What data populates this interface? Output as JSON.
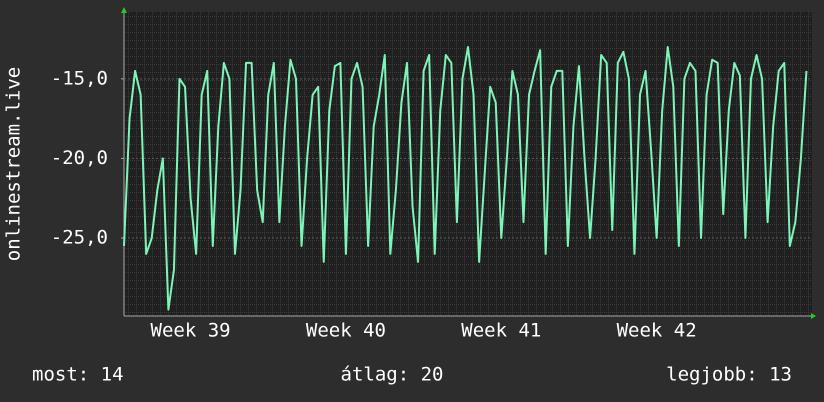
{
  "chart_data": {
    "type": "line",
    "ylabel": "onlinestream.live",
    "x": [
      0,
      0.25,
      0.5,
      0.75,
      1,
      1.25,
      1.5,
      1.75,
      2,
      2.25,
      2.5,
      2.75,
      3,
      3.25,
      3.5,
      3.75,
      4,
      4.25,
      4.5,
      4.75,
      5,
      5.25,
      5.5,
      5.75,
      6,
      6.25,
      6.5,
      6.75,
      7,
      7.25,
      7.5,
      7.75,
      8,
      8.25,
      8.5,
      8.75,
      9,
      9.25,
      9.5,
      9.75,
      10,
      10.25,
      10.5,
      10.75,
      11,
      11.25,
      11.5,
      11.75,
      12,
      12.25,
      12.5,
      12.75,
      13,
      13.25,
      13.5,
      13.75,
      14,
      14.25,
      14.5,
      14.75,
      15,
      15.25,
      15.5,
      15.75,
      16,
      16.25,
      16.5,
      16.75,
      17,
      17.25,
      17.5,
      17.75,
      18,
      18.25,
      18.5,
      18.75,
      19,
      19.25,
      19.5,
      19.75,
      20,
      20.25,
      20.5,
      20.75,
      21,
      21.25,
      21.5,
      21.75,
      22,
      22.25,
      22.5,
      22.75,
      23,
      23.25,
      23.5,
      23.75,
      24,
      24.25,
      24.5,
      24.75,
      25,
      25.25,
      25.5,
      25.75,
      26,
      26.25,
      26.5,
      26.75,
      27,
      27.25,
      27.5,
      27.75,
      28,
      28.25,
      28.5,
      28.75,
      29,
      29.25,
      29.5,
      29.75,
      30,
      30.25,
      30.5,
      30.75
    ],
    "series": [
      {
        "color": "#7df5b8",
        "values": [
          -25.5,
          -17.5,
          -14.5,
          -16,
          -26,
          -25,
          -22,
          -20,
          -29.5,
          -27,
          -15,
          -15.5,
          -22.5,
          -26,
          -16,
          -14.5,
          -25.5,
          -18,
          -14,
          -15,
          -26,
          -22,
          -14,
          -14,
          -22,
          -24,
          -16,
          -14,
          -24,
          -18,
          -13.8,
          -15,
          -25.5,
          -20,
          -16,
          -15.5,
          -26.5,
          -17,
          -14.2,
          -14,
          -26,
          -15,
          -14,
          -15.5,
          -25.5,
          -18,
          -16,
          -13.5,
          -26,
          -22,
          -16.5,
          -14,
          -23,
          -26.5,
          -14.5,
          -13.5,
          -26,
          -17,
          -13.5,
          -14,
          -24,
          -15,
          -13,
          -16,
          -26.5,
          -21,
          -15.5,
          -16.5,
          -25,
          -20,
          -14.5,
          -16,
          -24,
          -16,
          -14.5,
          -13.2,
          -26,
          -15.5,
          -14.5,
          -14.5,
          -25.5,
          -18,
          -14.2,
          -20,
          -25,
          -20,
          -13.5,
          -14,
          -24.5,
          -14,
          -13.3,
          -15,
          -26,
          -16,
          -14.5,
          -19.5,
          -25,
          -17,
          -13,
          -15.5,
          -25.5,
          -15,
          -14,
          -14.5,
          -25,
          -16,
          -13.8,
          -14,
          -23.5,
          -17,
          -14,
          -14.8,
          -25,
          -15,
          -13.5,
          -15,
          -24,
          -18,
          -14.5,
          -14,
          -25.5,
          -24,
          -20,
          -14.5
        ]
      }
    ],
    "xlim": [
      0,
      31
    ],
    "xticks": [
      {
        "value": 3,
        "label": "Week 39"
      },
      {
        "value": 10,
        "label": "Week 40"
      },
      {
        "value": 17,
        "label": "Week 41"
      },
      {
        "value": 24,
        "label": "Week 42"
      }
    ],
    "ylim": [
      -29.9,
      -10.8
    ],
    "yticks": [
      {
        "value": -25,
        "label": "-25,0"
      },
      {
        "value": -20,
        "label": "-20,0"
      },
      {
        "value": -15,
        "label": "-15,0"
      }
    ],
    "grid": true,
    "footer": [
      "most: 14",
      "átlag: 20",
      "legjobb: 13"
    ]
  }
}
